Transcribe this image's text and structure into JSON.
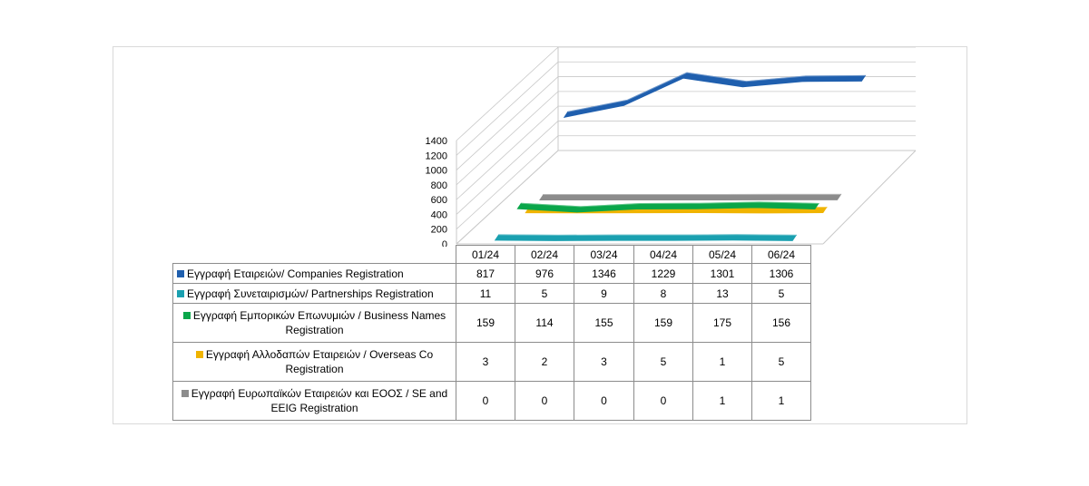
{
  "chart_data": {
    "type": "line",
    "style": "3d-ribbon",
    "categories": [
      "01/24",
      "02/24",
      "03/24",
      "04/24",
      "05/24",
      "06/24"
    ],
    "ylim": [
      0,
      1400
    ],
    "y_ticks": [
      "0",
      "200",
      "400",
      "600",
      "800",
      "1000",
      "1200",
      "1400"
    ],
    "grid": true,
    "legend_placement": "data-table-left",
    "series": [
      {
        "name": "Εγγραφή  Εταιρειών/ Companies Registration",
        "color": "#1f5fae",
        "values": [
          817,
          976,
          1346,
          1229,
          1301,
          1306
        ]
      },
      {
        "name": "Εγγραφή  Συνεταιρισμών/ Partnerships Registration",
        "color": "#1aa0b0",
        "values": [
          11,
          5,
          9,
          8,
          13,
          5
        ]
      },
      {
        "name": "Εγγραφή  Εμπορικών Επωνυμιών / Business Names Registration",
        "color": "#0aa64a",
        "values": [
          159,
          114,
          155,
          159,
          175,
          156
        ]
      },
      {
        "name": "Εγγραφή  Αλλοδαπών  Εταιρειών / Overseas Co Registration",
        "color": "#f0b400",
        "values": [
          3,
          2,
          3,
          5,
          1,
          5
        ]
      },
      {
        "name": "Εγγραφή  Ευρωπαϊκών Εταιρειών και ΕΟΟΣ / SE and EEIG Registration",
        "color": "#8c8c8c",
        "values": [
          0,
          0,
          0,
          0,
          1,
          1
        ]
      }
    ]
  }
}
